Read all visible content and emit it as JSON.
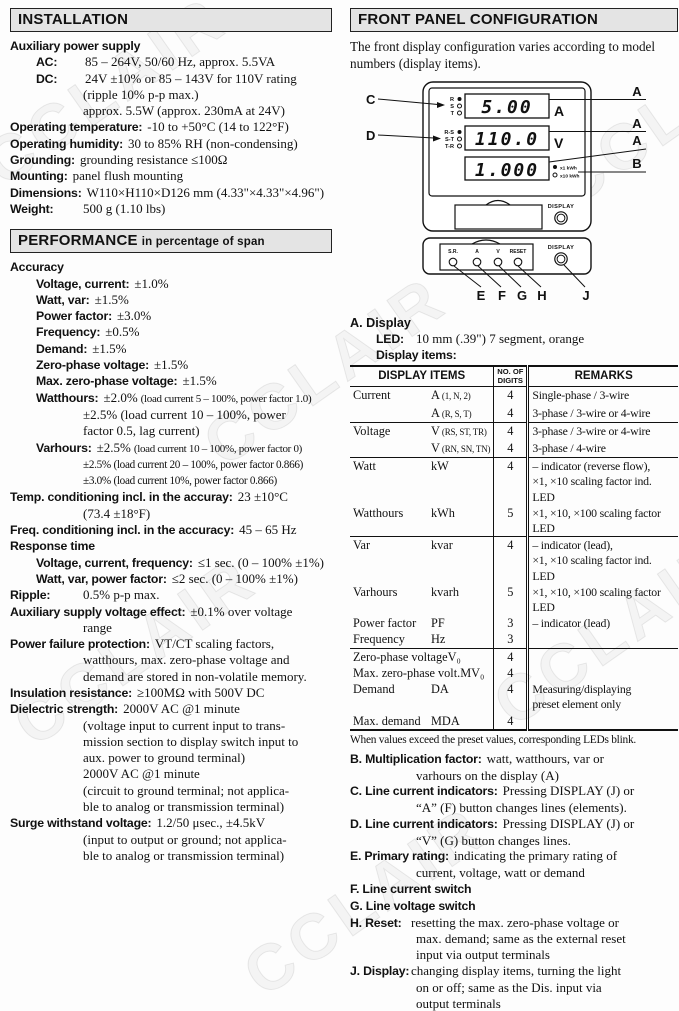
{
  "page": {
    "watermark": "CCLAIR"
  },
  "installation": {
    "title": "INSTALLATION",
    "items": [
      {
        "label": "Auxiliary power supply"
      },
      {
        "label": "AC:",
        "value": "85 – 264V, 50/60 Hz, approx. 5.5VA",
        "ind": 1,
        "tab": 2
      },
      {
        "label": "DC:",
        "value": "24V ±10% or 85 – 143V for 110V rating",
        "ind": 1,
        "tab": 2,
        "cont": [
          "(ripple 10% p-p max.)",
          "approx. 5.5W (approx. 230mA at 24V)"
        ]
      },
      {
        "label": "Operating temperature:",
        "value": "-10 to +50°C (14 to 122°F)"
      },
      {
        "label": "Operating humidity:",
        "value": "30 to 85% RH (non-condensing)"
      },
      {
        "label": "Grounding:",
        "value": "grounding resistance ≤100Ω"
      },
      {
        "label": "Mounting:",
        "value": "panel flush mounting"
      },
      {
        "label": "Dimensions:",
        "value": "W110×H110×D126 mm (4.33\"×4.33\"×4.96\")"
      },
      {
        "label": "Weight:",
        "value": "500 g (1.10 lbs)",
        "tab": 1
      }
    ]
  },
  "performance": {
    "title": "PERFORMANCE",
    "title_suffix": "in percentage of span",
    "items": [
      {
        "label": "Accuracy"
      },
      {
        "label": "Voltage, current:",
        "value": "±1.0%",
        "ind": 1
      },
      {
        "label": "Watt, var:",
        "value": "±1.5%",
        "ind": 1
      },
      {
        "label": "Power factor:",
        "value": "±3.0%",
        "ind": 1
      },
      {
        "label": "Frequency:",
        "value": "±0.5%",
        "ind": 1
      },
      {
        "label": "Demand:",
        "value": "±1.5%",
        "ind": 1
      },
      {
        "label": "Zero-phase voltage:",
        "value": "±1.5%",
        "ind": 1
      },
      {
        "label": "Max. zero-phase voltage:",
        "value": "±1.5%",
        "ind": 1
      },
      {
        "label": "Watthours:",
        "value": "±2.0%",
        "small": "(load current 5 – 100%, power factor 1.0)",
        "ind": 1,
        "cont": [
          "±2.5% (load current 10 – 100%, power",
          "factor 0.5, lag current)"
        ]
      },
      {
        "label": "Varhours:",
        "value": "±2.5%",
        "small": "(load current 10 – 100%, power factor 0)",
        "ind": 1,
        "cont": [
          {
            "t": "±2.5% (load current 20 – 100%, power factor 0.866)",
            "small": 1
          },
          {
            "t": "±3.0% (load current 10%, power factor 0.866)",
            "small": 1
          }
        ]
      },
      {
        "label": "Temp. conditioning incl. in the accuray:",
        "value": "23 ±10°C",
        "cont": [
          "(73.4 ±18°F)"
        ]
      },
      {
        "label": "Freq. conditioning incl. in the accuracy:",
        "value": "45 – 65 Hz"
      },
      {
        "label": "Response time"
      },
      {
        "label": "Voltage, current, frequency:",
        "value": "≤1 sec. (0 – 100% ±1%)",
        "ind": 1
      },
      {
        "label": "Watt, var, power factor:",
        "value": "≤2 sec. (0 – 100% ±1%)",
        "ind": 1
      },
      {
        "label": "Ripple:",
        "value": "0.5% p-p max.",
        "tab": 1
      },
      {
        "label": "Auxiliary supply voltage effect:",
        "value": "±0.1% over voltage",
        "cont": [
          "range"
        ]
      },
      {
        "label": "Power failure protection:",
        "value": "VT/CT scaling factors,",
        "cont": [
          "watthours, max. zero-phase voltage and",
          "demand are stored in non-volatile memory."
        ]
      },
      {
        "label": "Insulation resistance:",
        "value": "≥100MΩ with 500V DC"
      },
      {
        "label": "Dielectric strength:",
        "value": "2000V AC @1 minute",
        "cont": [
          "(voltage input to current input to trans-",
          "mission section to display switch input to",
          "aux. power to ground terminal)",
          "2000V AC @1 minute",
          "(circuit to ground terminal; not applica-",
          "ble to analog or transmission terminal)"
        ]
      },
      {
        "label": "Surge withstand voltage:",
        "value": "1.2/50 μsec., ±4.5kV",
        "cont": [
          "(input to output or ground; not applica-",
          "ble to analog or transmission terminal)"
        ]
      }
    ]
  },
  "front_panel": {
    "title": "FRONT PANEL CONFIGURATION",
    "intro": "The front display configuration varies according to model numbers (display items).",
    "diagram": {
      "displays": [
        {
          "value": "5.00",
          "unit": "A"
        },
        {
          "value": "110.0",
          "unit": "V"
        },
        {
          "value": "1.000",
          "unit": ""
        }
      ],
      "phase1": [
        "R",
        "S",
        "T"
      ],
      "phase2": [
        "R-S",
        "S-T",
        "T-R"
      ],
      "kwh": [
        "x1 kWh",
        "x10 kWh"
      ],
      "buttons": [
        "S.R.",
        "A",
        "V",
        "RESET"
      ],
      "display_button": "DISPLAY",
      "callouts": [
        "A",
        "A",
        "A",
        "B",
        "C",
        "D",
        "E",
        "F",
        "G",
        "H",
        "J"
      ]
    },
    "display_section": {
      "heading": "A. Display",
      "items": [
        {
          "label": "LED:",
          "value": "10 mm (.39\") 7 segment, orange",
          "ind": 1,
          "tab": 3
        },
        {
          "label": "Display items:",
          "ind": 1
        }
      ]
    },
    "table": {
      "headers": [
        "DISPLAY ITEMS",
        "NO. OF\nDIGITS",
        "REMARKS"
      ],
      "rows": [
        {
          "name": "Current",
          "sym": "A",
          "symq": "(1, N, 2)",
          "digits": "4",
          "remarks": "Single-phase / 3-wire"
        },
        {
          "name": "",
          "sym": "A",
          "symq": "(R, S, T)",
          "digits": "4",
          "remarks": "3-phase / 3-wire or 4-wire"
        },
        {
          "name": "Voltage",
          "sym": "V",
          "symq": "(RS, ST, TR)",
          "digits": "4",
          "remarks": "3-phase / 3-wire or 4-wire",
          "sep": 1
        },
        {
          "name": "",
          "sym": "V",
          "symq": "(RN, SN, TN)",
          "digits": "4",
          "remarks": "3-phase / 4-wire"
        },
        {
          "name": "Watt",
          "sym": "kW",
          "symq": "",
          "digits": "4",
          "remarks": "– indicator (reverse flow),\n×1, ×10 scaling factor ind. LED",
          "sep": 1
        },
        {
          "name": "Watthours",
          "sym": "kWh",
          "symq": "",
          "digits": "5",
          "remarks": "×1, ×10, ×100 scaling factor LED"
        },
        {
          "name": "Var",
          "sym": "kvar",
          "symq": "",
          "digits": "4",
          "remarks": "– indicator (lead),\n×1, ×10 scaling factor ind. LED",
          "sep": 1
        },
        {
          "name": "Varhours",
          "sym": "kvarh",
          "symq": "",
          "digits": "5",
          "remarks": "×1, ×10, ×100 scaling factor LED"
        },
        {
          "name": "Power factor",
          "sym": "PF",
          "symq": "",
          "digits": "3",
          "remarks": "– indicator (lead)"
        },
        {
          "name": "Frequency",
          "sym": "Hz",
          "symq": "",
          "digits": "3",
          "remarks": ""
        },
        {
          "name": "Zero-phase voltage",
          "sym": "V₀",
          "symq": "",
          "digits": "4",
          "remarks": "",
          "sep": 1
        },
        {
          "name": "Max. zero-phase volt.",
          "sym": "MV₀",
          "symq": "",
          "digits": "4",
          "remarks": ""
        },
        {
          "name": "Demand",
          "sym": "DA",
          "symq": "",
          "digits": "4",
          "remarks": "Measuring/displaying\npreset element only"
        },
        {
          "name": "Max. demand",
          "sym": "MDA",
          "symq": "",
          "digits": "4",
          "remarks": ""
        }
      ],
      "note": "When values exceed the preset values, corresponding LEDs blink."
    },
    "notes": [
      {
        "label": "B. Multiplication factor:",
        "value": "watt, watthours, var or",
        "cont": [
          "varhours on the display (A)"
        ]
      },
      {
        "label": "C. Line current indicators:",
        "value": "Pressing DISPLAY (J) or",
        "cont": [
          "“A” (F) button changes lines (elements)."
        ]
      },
      {
        "label": "D. Line current indicators:",
        "value": "Pressing DISPLAY (J) or",
        "cont": [
          "“V” (G) button changes lines."
        ]
      },
      {
        "label": "E. Primary rating:",
        "value": "indicating the primary rating of",
        "cont": [
          "current, voltage, watt or demand"
        ]
      },
      {
        "label": "F. Line current switch"
      },
      {
        "label": "G. Line voltage switch"
      },
      {
        "label": "H. Reset:",
        "value": "resetting the max. zero-phase voltage or",
        "tab": 4,
        "cont": [
          "max. demand; same as the external reset",
          "input via output terminals"
        ]
      },
      {
        "label": "J. Display:",
        "value": "changing display items, turning the light",
        "tab": 4,
        "cont": [
          "on or off; same as the Dis. input via",
          "output terminals"
        ]
      }
    ]
  }
}
